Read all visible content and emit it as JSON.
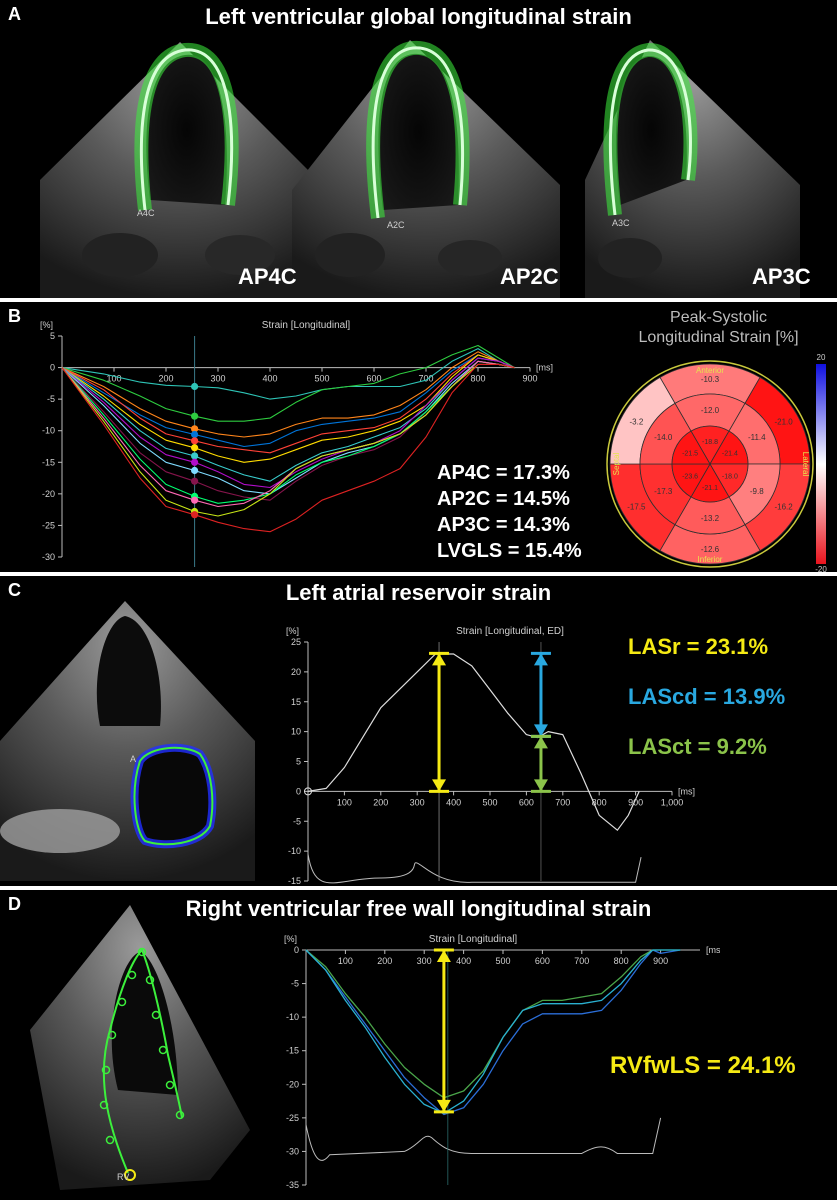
{
  "colors": {
    "yellow": "#f5ea14",
    "blue": "#29a8e0",
    "green": "#8bc34a",
    "echo_green": "#3cf03c",
    "bull_red": "#e8141e"
  },
  "panel_a": {
    "label": "A",
    "title": "Left ventricular global longitudinal strain",
    "views": [
      {
        "name": "AP4C",
        "marker": "A4C"
      },
      {
        "name": "AP2C",
        "marker": "A2C"
      },
      {
        "name": "AP3C",
        "marker": "A3C"
      }
    ]
  },
  "panel_b": {
    "label": "B",
    "results": [
      "AP4C = 17.3%",
      "AP2C = 14.5%",
      "AP3C = 14.3%",
      "LVGLS = 15.4%"
    ],
    "bullseye": {
      "title_line1": "Peak-Systolic",
      "title_line2": "Longitudinal Strain [%]",
      "orientation": {
        "anterior": "Anterior",
        "inferior": "Inferior",
        "septal": "Septal",
        "lateral": "Lateral"
      },
      "scale_max": "20",
      "scale_min": "-20",
      "outer_ring": [
        "-10.3",
        "-21.0",
        "-16.2",
        "-12.6",
        "-17.5",
        "-3.2"
      ],
      "mid_ring": [
        "-12.0",
        "-11.4",
        "-9.8",
        "-13.2",
        "-17.3",
        "-14.0"
      ],
      "apical_ring": [
        "-18.8",
        "-21.4",
        "-18.0",
        "-21.1",
        "-23.6",
        "-21.5"
      ],
      "outer_values": [
        -10.3,
        -21.0,
        -16.2,
        -12.6,
        -17.5,
        -3.2
      ],
      "mid_values": [
        -12.0,
        -11.4,
        -9.8,
        -13.2,
        -17.3,
        -14.0
      ],
      "apical_values": [
        -18.8,
        -21.4,
        -18.0,
        -21.1,
        -23.6,
        -21.5
      ]
    }
  },
  "panel_c": {
    "label": "C",
    "title": "Left atrial reservoir strain",
    "marker": "A",
    "results": [
      {
        "text": "LASr = 23.1%",
        "color": "#f5ea14"
      },
      {
        "text": "LAScd = 13.9%",
        "color": "#29a8e0"
      },
      {
        "text": "LASct = 9.2%",
        "color": "#8bc34a"
      }
    ]
  },
  "panel_d": {
    "label": "D",
    "title": "Right ventricular free wall longitudinal strain",
    "marker": "RV",
    "result": "RVfwLS = 24.1%"
  },
  "chart_data": [
    {
      "type": "line",
      "title": "Strain [Longitudinal]",
      "ylabel": "[%]",
      "xlabel": "[ms]",
      "ylim": [
        -30,
        5
      ],
      "xlim": [
        0,
        900
      ],
      "x_ticks": [
        100,
        200,
        300,
        400,
        500,
        600,
        700,
        800,
        900
      ],
      "y_ticks": [
        5,
        0,
        -5,
        -10,
        -15,
        -20,
        -25,
        -30
      ],
      "grid": false,
      "marker_time": 255,
      "series": [
        {
          "color": "#2ec4b6",
          "x": [
            0,
            80,
            150,
            200,
            255,
            300,
            350,
            400,
            450,
            500,
            550,
            600,
            650,
            700,
            750,
            800,
            840,
            870
          ],
          "y": [
            0,
            -1,
            -2.3,
            -2.8,
            -3,
            -3.2,
            -4,
            -5,
            -4.5,
            -3.5,
            -3,
            -3,
            -3,
            -2,
            1,
            3,
            1,
            0
          ]
        },
        {
          "color": "#2ecc40",
          "x": [
            0,
            80,
            150,
            200,
            255,
            300,
            350,
            400,
            450,
            500,
            550,
            600,
            650,
            700,
            750,
            800,
            840,
            870
          ],
          "y": [
            0,
            -2,
            -4.5,
            -6.5,
            -7.7,
            -8.5,
            -8.5,
            -8,
            -5.5,
            -3.5,
            -3,
            -2.5,
            -1,
            0,
            2,
            3.5,
            1.5,
            0
          ]
        },
        {
          "color": "#ff851b",
          "x": [
            0,
            80,
            150,
            200,
            255,
            300,
            350,
            400,
            450,
            500,
            550,
            600,
            650,
            700,
            750,
            800,
            840,
            870
          ],
          "y": [
            0,
            -3,
            -6.5,
            -8.5,
            -9.7,
            -10.5,
            -11,
            -10.5,
            -9,
            -8,
            -8,
            -7.5,
            -6,
            -3.5,
            0,
            2.5,
            1,
            0
          ]
        },
        {
          "color": "#0074d9",
          "x": [
            0,
            80,
            150,
            200,
            255,
            300,
            350,
            400,
            450,
            500,
            550,
            600,
            650,
            700,
            750,
            800,
            840,
            870
          ],
          "y": [
            0,
            -4,
            -7.5,
            -9.5,
            -10.6,
            -11.5,
            -12.5,
            -12,
            -10,
            -9,
            -8.5,
            -8,
            -7,
            -4,
            -0.5,
            2,
            1,
            0
          ]
        },
        {
          "color": "#ff4136",
          "x": [
            0,
            80,
            150,
            200,
            255,
            300,
            350,
            400,
            450,
            500,
            550,
            600,
            650,
            700,
            750,
            800,
            840,
            870
          ],
          "y": [
            0,
            -3.5,
            -8,
            -10.5,
            -11.6,
            -12.5,
            -13,
            -13.5,
            -12,
            -10.5,
            -10,
            -9.5,
            -8,
            -5,
            -1,
            2,
            1,
            0
          ]
        },
        {
          "color": "#ffdc00",
          "x": [
            0,
            80,
            150,
            200,
            255,
            300,
            350,
            400,
            450,
            500,
            550,
            600,
            650,
            700,
            750,
            800,
            840,
            870
          ],
          "y": [
            0,
            -4.5,
            -9,
            -11.5,
            -12.7,
            -14,
            -15,
            -14.5,
            -13,
            -11.5,
            -11,
            -10,
            -8.5,
            -6,
            -1.5,
            2,
            1,
            0
          ]
        },
        {
          "color": "#39cccc",
          "x": [
            0,
            80,
            150,
            200,
            255,
            300,
            350,
            400,
            450,
            500,
            550,
            600,
            650,
            700,
            750,
            800,
            840,
            870
          ],
          "y": [
            0,
            -5,
            -10,
            -12.8,
            -14,
            -15.5,
            -17,
            -18,
            -15.5,
            -13.5,
            -12.5,
            -11,
            -9.5,
            -6.5,
            -2,
            1.5,
            1,
            0
          ]
        },
        {
          "color": "#b10dc9",
          "x": [
            0,
            80,
            150,
            200,
            255,
            300,
            350,
            400,
            450,
            500,
            550,
            600,
            650,
            700,
            750,
            800,
            840,
            870
          ],
          "y": [
            0,
            -5.5,
            -11,
            -13.8,
            -15,
            -16.5,
            -18.5,
            -19,
            -16.5,
            -14.5,
            -13,
            -12,
            -10,
            -6,
            -2,
            1.5,
            1,
            0
          ]
        },
        {
          "color": "#7fdbff",
          "x": [
            0,
            80,
            150,
            200,
            255,
            300,
            350,
            400,
            450,
            500,
            550,
            600,
            650,
            700,
            750,
            800,
            840,
            870
          ],
          "y": [
            0,
            -6,
            -12,
            -15,
            -16.3,
            -17.5,
            -19.5,
            -20,
            -17.5,
            -15,
            -13.5,
            -12.5,
            -10.5,
            -7,
            -2.5,
            1,
            0.5,
            0
          ]
        },
        {
          "color": "#85144b",
          "x": [
            0,
            80,
            150,
            200,
            255,
            300,
            350,
            400,
            450,
            500,
            550,
            600,
            650,
            700,
            750,
            800,
            840,
            870
          ],
          "y": [
            0,
            -7,
            -13.5,
            -16.5,
            -18,
            -19.5,
            -20.5,
            -21,
            -18,
            -15.5,
            -14,
            -13,
            -11,
            -7,
            -3,
            1,
            0.5,
            0
          ]
        },
        {
          "color": "#01ff70",
          "x": [
            0,
            80,
            150,
            200,
            255,
            300,
            350,
            400,
            450,
            500,
            550,
            600,
            650,
            700,
            750,
            800,
            840,
            870
          ],
          "y": [
            0,
            -7.5,
            -14.5,
            -18.5,
            -20.4,
            -21.5,
            -21,
            -20,
            -17,
            -15,
            -14,
            -12.5,
            -10.5,
            -7,
            -3,
            1,
            0.5,
            0
          ]
        },
        {
          "color": "#ff69b4",
          "x": [
            0,
            80,
            150,
            200,
            255,
            300,
            350,
            400,
            450,
            500,
            550,
            600,
            650,
            700,
            750,
            800,
            840,
            870
          ],
          "y": [
            0,
            -8,
            -15.5,
            -19.5,
            -21,
            -22,
            -21.5,
            -19.5,
            -16,
            -14,
            -13,
            -12,
            -10.5,
            -7.5,
            -3,
            1,
            0.5,
            0
          ]
        },
        {
          "color": "#c8e617",
          "x": [
            0,
            80,
            150,
            200,
            255,
            300,
            350,
            400,
            450,
            500,
            550,
            600,
            650,
            700,
            750,
            800,
            840,
            870
          ],
          "y": [
            0,
            -8.5,
            -16.5,
            -21,
            -22.8,
            -23.5,
            -22.5,
            -20,
            -16,
            -14,
            -13,
            -12,
            -10.5,
            -7.5,
            -3,
            0.5,
            0.5,
            0
          ]
        },
        {
          "color": "#dd2222",
          "x": [
            0,
            80,
            150,
            200,
            255,
            300,
            350,
            400,
            450,
            500,
            550,
            600,
            650,
            700,
            750,
            800,
            840,
            870
          ],
          "y": [
            0,
            -9,
            -17.5,
            -22,
            -23.3,
            -24.5,
            -25.5,
            -26,
            -24,
            -21,
            -19.5,
            -18,
            -16,
            -11,
            -4,
            0.5,
            0.5,
            0
          ]
        }
      ]
    },
    {
      "type": "line",
      "title": "Strain [Longitudinal, ED]",
      "ylabel": "[%]",
      "xlabel": "[ms]",
      "ylim": [
        -15,
        25
      ],
      "xlim": [
        0,
        1000
      ],
      "x_ticks": [
        100,
        200,
        300,
        400,
        500,
        600,
        700,
        800,
        900,
        1000
      ],
      "x_tick_labels": [
        "100",
        "200",
        "300",
        "400",
        "500",
        "600",
        "700",
        "800",
        "900",
        "1,000"
      ],
      "y_ticks": [
        25,
        20,
        15,
        10,
        5,
        0,
        -5,
        -10,
        -15
      ],
      "grid": false,
      "series": [
        {
          "color": "#dddddd",
          "x": [
            0,
            50,
            100,
            150,
            200,
            250,
            300,
            350,
            400,
            450,
            500,
            550,
            600,
            630,
            660,
            700,
            750,
            800,
            850,
            880,
            910
          ],
          "y": [
            0,
            0.5,
            4,
            9,
            14,
            17,
            20,
            23,
            23,
            21,
            17,
            13,
            9.5,
            9,
            10,
            9.5,
            3,
            -4,
            -6.5,
            -4,
            0
          ]
        }
      ],
      "annotations": [
        {
          "label": "LASr",
          "color": "#f5ea14",
          "x": 360,
          "from": 0,
          "to": 23.1
        },
        {
          "label": "LAScd",
          "color": "#29a8e0",
          "x": 640,
          "from": 9.2,
          "to": 23.1
        },
        {
          "label": "LASct",
          "color": "#8bc34a",
          "x": 640,
          "from": 0,
          "to": 9.2
        }
      ]
    },
    {
      "type": "line",
      "title": "Strain [Longitudinal]",
      "ylabel": "[%]",
      "xlabel": "[ms]",
      "ylim": [
        -35,
        0
      ],
      "xlim": [
        0,
        1000
      ],
      "x_ticks": [
        100,
        200,
        300,
        400,
        500,
        600,
        700,
        800,
        900
      ],
      "y_ticks": [
        0,
        -5,
        -10,
        -15,
        -20,
        -25,
        -30,
        -35
      ],
      "grid": false,
      "series": [
        {
          "color": "#2b6ed8",
          "x": [
            0,
            50,
            100,
            150,
            200,
            250,
            300,
            350,
            400,
            450,
            500,
            550,
            600,
            650,
            700,
            750,
            800,
            850,
            880,
            900,
            950
          ],
          "y": [
            0,
            -3,
            -7,
            -11,
            -15,
            -19,
            -22,
            -24.5,
            -23.5,
            -20,
            -15,
            -11,
            -9.5,
            -9.5,
            -9.5,
            -9,
            -6,
            -2,
            0,
            -0.5,
            0
          ]
        },
        {
          "color": "#4aa54a",
          "x": [
            0,
            50,
            100,
            150,
            200,
            250,
            300,
            350,
            400,
            450,
            500,
            550,
            600,
            650,
            700,
            750,
            800,
            850,
            880,
            900,
            950
          ],
          "y": [
            0,
            -2.5,
            -6.5,
            -10,
            -14,
            -17.5,
            -20,
            -22,
            -21,
            -18,
            -13,
            -9,
            -7.5,
            -7.5,
            -7,
            -6.5,
            -4,
            -1,
            0,
            0,
            0
          ]
        },
        {
          "color": "#2ab0d0",
          "x": [
            0,
            50,
            100,
            150,
            200,
            250,
            300,
            350,
            400,
            450,
            500,
            550,
            600,
            650,
            700,
            750,
            800,
            850,
            880,
            900,
            950
          ],
          "y": [
            0,
            -3,
            -7.5,
            -11.5,
            -16,
            -20,
            -23,
            -24.3,
            -22.5,
            -18.5,
            -13,
            -9,
            -8,
            -8,
            -8,
            -7.5,
            -5,
            -1.5,
            0,
            0,
            0
          ]
        }
      ],
      "annotations": [
        {
          "label": "RVfwLS",
          "color": "#f5ea14",
          "x": 350,
          "from": 0,
          "to": -24.1
        }
      ]
    }
  ]
}
